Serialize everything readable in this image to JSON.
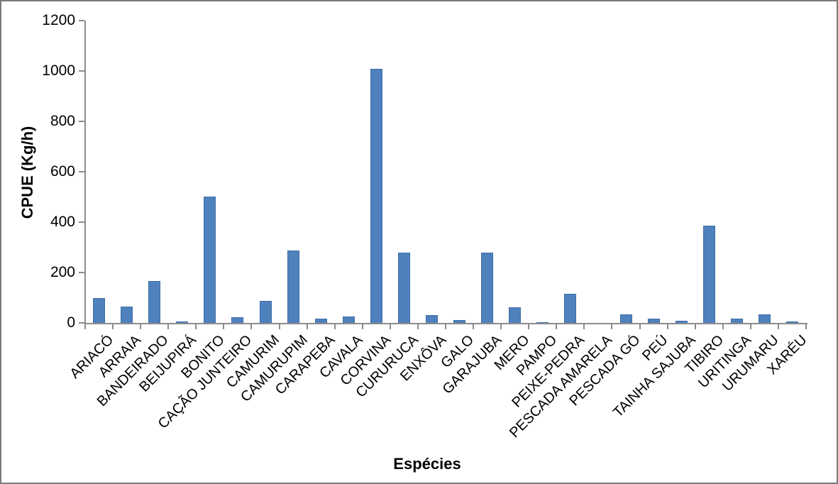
{
  "chart_data": {
    "type": "bar",
    "title": "",
    "xlabel": "Espécies",
    "ylabel": "CPUE (Kg/h)",
    "categories": [
      "ARIACÓ",
      "ARRAIA",
      "BANDEIRADO",
      "BEIJUPIRÁ",
      "BONITO",
      "CAÇÃO JUNTEIRO",
      "CAMURIM",
      "CAMURUPIM",
      "CARAPEBA",
      "CAVALA",
      "CORVINA",
      "CURURUCA",
      "ENXÔVA",
      "GALO",
      "GARAJUBA",
      "MERO",
      "PAMPO",
      "PEIXE-PEDRA",
      "PESCADA AMARELA",
      "PESCADA GÓ",
      "PEÚ",
      "TAINHA SAJUBA",
      "TIBIRO",
      "URITINGA",
      "URUMARU",
      "XARÉU"
    ],
    "values": [
      98,
      65,
      165,
      6,
      500,
      23,
      87,
      288,
      17,
      25,
      1008,
      279,
      32,
      11,
      280,
      62,
      2,
      115,
      1,
      35,
      18,
      8,
      385,
      16,
      35,
      5
    ],
    "ylim": [
      0,
      1200
    ],
    "yticks": [
      0,
      200,
      400,
      600,
      800,
      1000,
      1200
    ],
    "grid": false,
    "legend_position": "none",
    "bar_color": "#4F81BD",
    "bar_border_color": "#3E6DA8",
    "axis_color": "#8C8C8C"
  }
}
